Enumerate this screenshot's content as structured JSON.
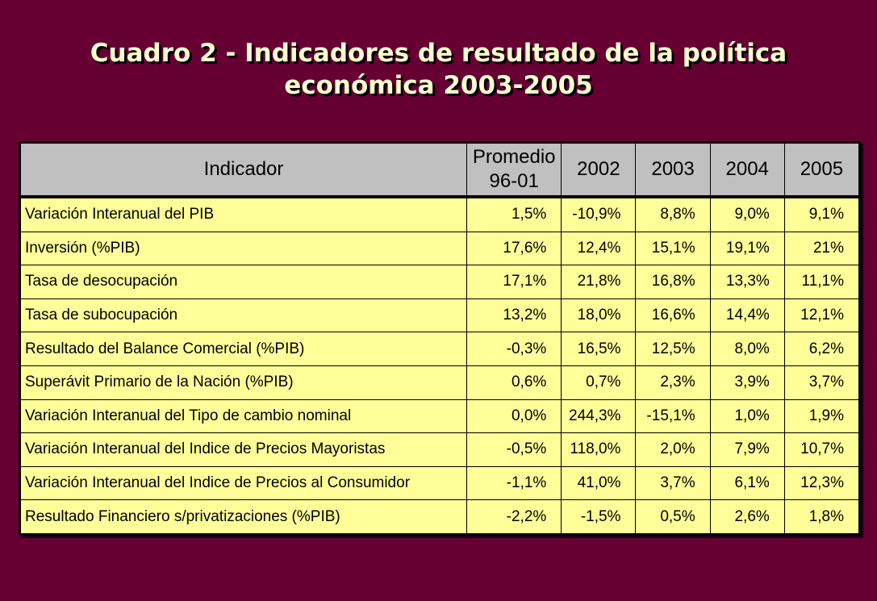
{
  "title": {
    "line1": "Cuadro 2 - Indicadores de resultado de la política",
    "line2": "económica 2003-2005"
  },
  "table": {
    "headers": {
      "indicator": "Indicador",
      "average_line1": "Promedio",
      "average_line2": "96-01",
      "y2002": "2002",
      "y2003": "2003",
      "y2004": "2004",
      "y2005": "2005"
    },
    "rows": [
      {
        "name": "Variación Interanual del PIB",
        "avg": "1,5%",
        "y2002": "-10,9%",
        "y2003": "8,8%",
        "y2004": "9,0%",
        "y2005": "9,1%"
      },
      {
        "name": "Inversión (%PIB)",
        "avg": "17,6%",
        "y2002": "12,4%",
        "y2003": "15,1%",
        "y2004": "19,1%",
        "y2005": "21%"
      },
      {
        "name": "Tasa de desocupación",
        "avg": "17,1%",
        "y2002": "21,8%",
        "y2003": "16,8%",
        "y2004": "13,3%",
        "y2005": "11,1%"
      },
      {
        "name": "Tasa de subocupación",
        "avg": "13,2%",
        "y2002": "18,0%",
        "y2003": "16,6%",
        "y2004": "14,4%",
        "y2005": "12,1%"
      },
      {
        "name": "Resultado del Balance Comercial (%PIB)",
        "avg": "-0,3%",
        "y2002": "16,5%",
        "y2003": "12,5%",
        "y2004": "8,0%",
        "y2005": "6,2%"
      },
      {
        "name": "Superávit Primario de la Nación (%PIB)",
        "avg": "0,6%",
        "y2002": "0,7%",
        "y2003": "2,3%",
        "y2004": "3,9%",
        "y2005": "3,7%"
      },
      {
        "name": "Variación Interanual del Tipo de cambio nominal",
        "avg": "0,0%",
        "y2002": "244,3%",
        "y2003": "-15,1%",
        "y2004": "1,0%",
        "y2005": "1,9%"
      },
      {
        "name": "Variación Interanual del Indice de Precios Mayoristas",
        "avg": "-0,5%",
        "y2002": "118,0%",
        "y2003": "2,0%",
        "y2004": "7,9%",
        "y2005": "10,7%"
      },
      {
        "name": "Variación Interanual del Indice de Precios al Consumidor",
        "avg": "-1,1%",
        "y2002": "41,0%",
        "y2003": "3,7%",
        "y2004": "6,1%",
        "y2005": "12,3%"
      },
      {
        "name": "Resultado Financiero s/privatizaciones (%PIB)",
        "avg": "-2,2%",
        "y2002": "-1,5%",
        "y2003": "0,5%",
        "y2004": "2,6%",
        "y2005": "1,8%"
      }
    ]
  },
  "colors": {
    "background": "#660033",
    "title_text": "#ffffcc",
    "header_fill": "#c0c0c0",
    "cell_fill": "#ffff99"
  }
}
